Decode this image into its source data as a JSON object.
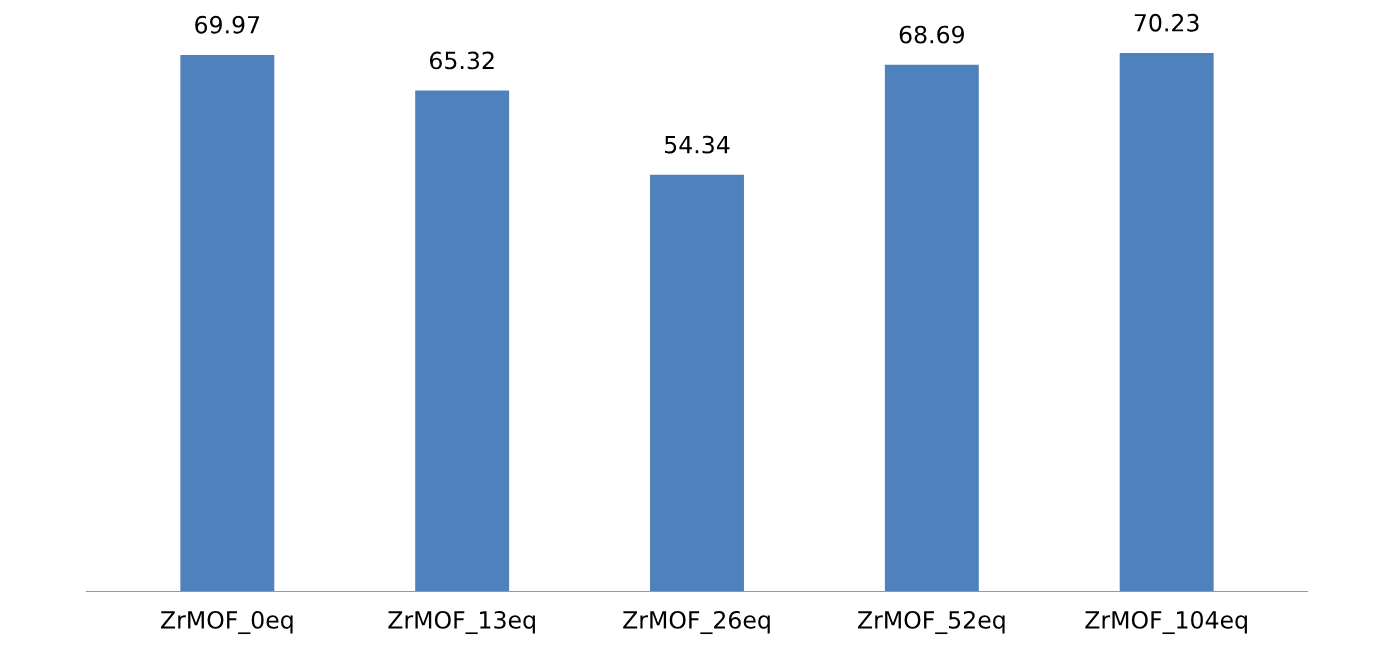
{
  "chart_data": {
    "type": "bar",
    "categories": [
      "ZrMOF_0eq",
      "ZrMOF_13eq",
      "ZrMOF_26eq",
      "ZrMOF_52eq",
      "ZrMOF_104eq"
    ],
    "values": [
      69.97,
      65.32,
      54.34,
      68.69,
      70.23
    ],
    "color": "#4f81bd",
    "data_labels": true
  }
}
